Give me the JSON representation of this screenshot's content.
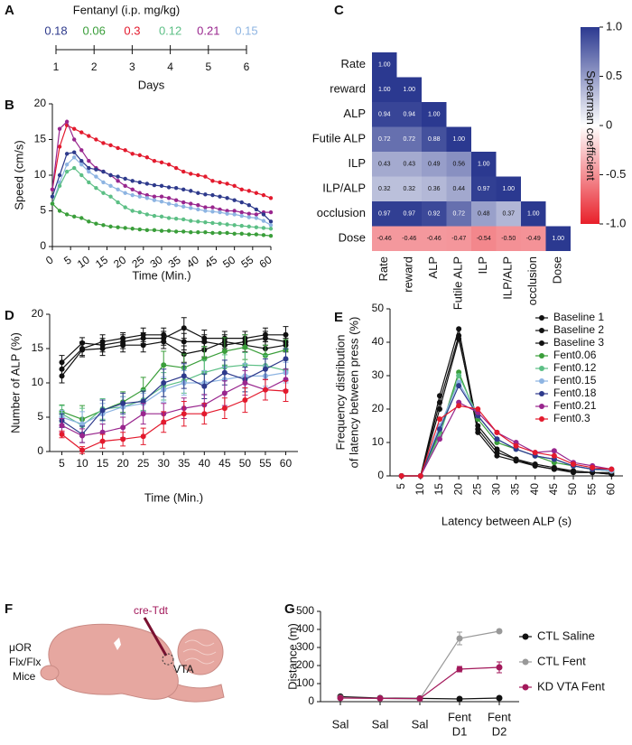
{
  "chart_data": [
    {
      "panel": "A",
      "type": "timeline",
      "title": "Fentanyl (i.p. mg/kg)",
      "xlabel": "Days",
      "x": [
        1,
        2,
        3,
        4,
        5,
        6
      ],
      "values": [
        0.18,
        0.06,
        0.3,
        0.12,
        0.21,
        0.15
      ],
      "colors": [
        "#2e3a8c",
        "#3a9e3a",
        "#e31a2d",
        "#5cbf85",
        "#99268e",
        "#8db4e2"
      ],
      "xlim": [
        1,
        6
      ],
      "xticks": [
        1,
        2,
        3,
        4,
        5,
        6
      ]
    },
    {
      "panel": "B",
      "type": "line",
      "xlabel": "Time (Min.)",
      "ylabel": "Speed (cm/s)",
      "x": [
        0,
        2,
        4,
        6,
        8,
        10,
        12,
        14,
        16,
        18,
        20,
        22,
        24,
        26,
        28,
        30,
        32,
        34,
        36,
        38,
        40,
        42,
        44,
        46,
        48,
        50,
        52,
        54,
        56,
        58,
        60
      ],
      "xlim": [
        0,
        60
      ],
      "xticks": [
        0,
        5,
        10,
        15,
        20,
        25,
        30,
        35,
        40,
        45,
        50,
        55,
        60
      ],
      "ylim": [
        0,
        20
      ],
      "yticks": [
        0,
        5,
        10,
        15,
        20
      ],
      "series": [
        {
          "color": "#e31a2d",
          "values": [
            8,
            14,
            17,
            16.5,
            16,
            15.5,
            15,
            14.5,
            14.2,
            13.8,
            13.5,
            13,
            12.8,
            12.5,
            12,
            11.8,
            11.5,
            11,
            10.5,
            10.2,
            10,
            9.8,
            9.2,
            9,
            8.8,
            8.5,
            8,
            7.8,
            7.5,
            7.2,
            6.8
          ]
        },
        {
          "color": "#99268e",
          "values": [
            8,
            16.5,
            17.5,
            15,
            13.5,
            12,
            11,
            10.5,
            10,
            9.2,
            8.5,
            8,
            7.5,
            7.2,
            7,
            7,
            6.8,
            6.5,
            6.2,
            6,
            5.8,
            5.5,
            5.5,
            5.2,
            5,
            5,
            4.8,
            4.6,
            4.5,
            4.8,
            4.8
          ]
        },
        {
          "color": "#2e3a8c",
          "values": [
            7,
            10,
            13,
            13.2,
            12,
            11,
            10.8,
            10.5,
            10,
            9.8,
            9.5,
            9.2,
            9,
            8.8,
            8.6,
            8.5,
            8.3,
            8.2,
            8,
            7.8,
            7.5,
            7.3,
            7.2,
            7,
            6.8,
            6.5,
            6.2,
            5.8,
            5.2,
            4.5,
            3.5
          ]
        },
        {
          "color": "#8db4e2",
          "values": [
            6,
            9,
            11.5,
            12.5,
            11.5,
            10.5,
            9.8,
            9,
            8.5,
            8,
            7.5,
            7.2,
            7,
            6.8,
            6.5,
            6.3,
            6,
            5.8,
            5.6,
            5.4,
            5.2,
            5,
            4.9,
            4.8,
            4.6,
            4.5,
            4.3,
            4.1,
            4,
            3.6,
            3
          ]
        },
        {
          "color": "#5cbf85",
          "values": [
            6,
            8.5,
            10.5,
            11,
            10,
            9,
            8.2,
            7.5,
            7,
            6.2,
            5.5,
            5,
            4.8,
            4.5,
            4.3,
            4.2,
            4,
            3.9,
            3.8,
            3.6,
            3.5,
            3.4,
            3.3,
            3.2,
            3.1,
            3,
            2.9,
            2.8,
            2.7,
            2.6,
            2.5
          ]
        },
        {
          "color": "#3a9e3a",
          "values": [
            6,
            5,
            4.5,
            4.2,
            4,
            3.5,
            3.2,
            3,
            2.8,
            2.7,
            2.6,
            2.5,
            2.4,
            2.3,
            2.3,
            2.2,
            2.2,
            2.1,
            2.1,
            2,
            2,
            2,
            1.9,
            1.9,
            1.9,
            1.8,
            1.8,
            1.7,
            1.7,
            1.6,
            1.5
          ]
        }
      ]
    },
    {
      "panel": "C",
      "type": "heatmap",
      "colorbar_label": "Spearman coefficient",
      "rows": [
        "Rate",
        "reward",
        "ALP",
        "Futile ALP",
        "ILP",
        "ILP/ALP",
        "occlusion",
        "Dose"
      ],
      "columns": [
        "Rate",
        "reward",
        "ALP",
        "Futile ALP",
        "ILP",
        "ILP/ALP",
        "occlusion",
        "Dose"
      ],
      "values": [
        [
          1,
          null,
          null,
          null,
          null,
          null,
          null,
          null
        ],
        [
          1,
          1,
          null,
          null,
          null,
          null,
          null,
          null
        ],
        [
          0.94,
          0.94,
          1,
          null,
          null,
          null,
          null,
          null
        ],
        [
          0.72,
          0.72,
          0.88,
          1,
          null,
          null,
          null,
          null
        ],
        [
          0.43,
          0.43,
          0.49,
          0.56,
          1,
          null,
          null,
          null
        ],
        [
          0.32,
          0.32,
          0.36,
          0.44,
          0.97,
          1,
          null,
          null
        ],
        [
          0.97,
          0.97,
          0.92,
          0.72,
          0.48,
          0.37,
          1,
          null
        ],
        [
          -0.46,
          -0.46,
          -0.46,
          -0.47,
          -0.54,
          -0.5,
          -0.49,
          1
        ]
      ],
      "value_labels": [
        [
          "1.00",
          null,
          null,
          null,
          null,
          null,
          null,
          null
        ],
        [
          "1.00",
          "1.00",
          null,
          null,
          null,
          null,
          null,
          null
        ],
        [
          "0.94",
          "0.94",
          "1.00",
          null,
          null,
          null,
          null,
          null
        ],
        [
          "0.72",
          "0.72",
          "0.88",
          "1.00",
          null,
          null,
          null,
          null
        ],
        [
          "0.43",
          "0.43",
          "0.49",
          "0.56",
          "1.00",
          null,
          null,
          null
        ],
        [
          "0.32",
          "0.32",
          "0.36",
          "0.44",
          "0.97",
          "1.00",
          null,
          null
        ],
        [
          "0.97",
          "0.97",
          "0.92",
          "0.72",
          "0.48",
          "0.37",
          "1.00",
          null
        ],
        [
          "-0.46",
          "-0.46",
          "-0.46",
          "-0.47",
          "-0.54",
          "-0.50",
          "-0.49",
          "1.00"
        ]
      ],
      "colormap": [
        "#e8202a",
        "#ffffff",
        "#2b3990"
      ],
      "clim": [
        -1,
        1
      ],
      "cticks": [
        {
          "value": -1,
          "label": "-1.0"
        },
        -0.5,
        0,
        0.5,
        {
          "value": 1,
          "label": "1.0"
        }
      ]
    },
    {
      "panel": "D",
      "type": "line",
      "xlabel": "Time (Min.)",
      "ylabel": "Number of ALP (%)",
      "x": [
        5,
        10,
        15,
        20,
        25,
        30,
        35,
        40,
        45,
        50,
        55,
        60
      ],
      "xlim": [
        2,
        63
      ],
      "xticks": [
        5,
        10,
        15,
        20,
        25,
        30,
        35,
        40,
        45,
        50,
        55,
        60
      ],
      "ylim": [
        0,
        20
      ],
      "yticks": [
        0,
        5,
        10,
        15,
        20
      ],
      "series": [
        {
          "color": "#111111",
          "values": [
            13,
            15.8,
            15.5,
            16,
            16.5,
            16.5,
            18,
            16.5,
            16.5,
            16.5,
            17,
            17
          ],
          "errors": [
            1,
            0.8,
            1,
            1,
            0.8,
            1,
            1.5,
            1.2,
            1,
            1,
            1,
            1.2
          ]
        },
        {
          "color": "#111111",
          "values": [
            12,
            15,
            16,
            16.5,
            17,
            17,
            16,
            16,
            15.5,
            16,
            16.5,
            16
          ],
          "errors": [
            1,
            1,
            1,
            0.8,
            1,
            1,
            1.2,
            1,
            1,
            1,
            1,
            1
          ]
        },
        {
          "color": "#111111",
          "values": [
            11,
            14.8,
            15,
            15.5,
            15.5,
            16,
            14.2,
            14.8,
            16,
            15.5,
            15,
            15.5
          ],
          "errors": [
            1,
            1,
            1,
            1,
            1,
            1,
            1.2,
            1,
            1,
            1,
            1,
            1
          ]
        },
        {
          "color": "#3a9e3a",
          "values": [
            5.8,
            4.7,
            6,
            7.2,
            9,
            12.6,
            12.2,
            13.5,
            14.6,
            15.2,
            14,
            14.8
          ],
          "errors": [
            1,
            2,
            1.5,
            1.5,
            1.8,
            2,
            2,
            1.8,
            2,
            1.8,
            1.5,
            1.5
          ]
        },
        {
          "color": "#5cbf85",
          "values": [
            5.5,
            3.8,
            6.2,
            6.5,
            7.5,
            9.5,
            10.3,
            11.5,
            12.3,
            12.6,
            12.5,
            11.8
          ],
          "errors": [
            1.2,
            2.5,
            1.5,
            1.5,
            1.5,
            2,
            1.8,
            1.8,
            1.8,
            1.8,
            1.5,
            1.5
          ]
        },
        {
          "color": "#8db4e2",
          "values": [
            5,
            4,
            5.5,
            6.5,
            7,
            9,
            10,
            10,
            10.5,
            11,
            11,
            11.5
          ],
          "errors": [
            1,
            1.8,
            1.5,
            1.5,
            1.5,
            1.8,
            1.8,
            1.8,
            1.8,
            1.8,
            1.5,
            1.5
          ]
        },
        {
          "color": "#2e3a8c",
          "values": [
            4.5,
            2.5,
            6,
            7,
            7.3,
            10,
            11,
            9.5,
            11.5,
            10.5,
            12,
            13.5
          ],
          "errors": [
            1,
            1.2,
            1.5,
            1.5,
            1.5,
            2,
            1.8,
            1.8,
            1.8,
            1.8,
            1.5,
            1.5
          ]
        },
        {
          "color": "#99268e",
          "values": [
            3.8,
            2.3,
            2.8,
            3.5,
            5.5,
            5.5,
            6.3,
            6.8,
            8.5,
            10,
            9,
            10.5
          ],
          "errors": [
            1,
            1,
            1.2,
            1.5,
            1.5,
            1.5,
            1.5,
            1.5,
            1.8,
            1.8,
            1.5,
            1.5
          ]
        },
        {
          "color": "#e31a2d",
          "values": [
            2.5,
            0.2,
            1.5,
            1.8,
            2.2,
            4.3,
            5.5,
            5.5,
            6.3,
            7.5,
            9,
            8.8
          ],
          "errors": [
            0.5,
            0.5,
            1,
            1,
            1.2,
            1.5,
            1.8,
            1.5,
            1.5,
            1.8,
            1.5,
            1.5
          ]
        }
      ]
    },
    {
      "panel": "E",
      "type": "line",
      "xlabel": "Latency between ALP (s)",
      "ylabel": [
        "Frequency distribution",
        "of latency between press (%)"
      ],
      "x": [
        5,
        10,
        15,
        20,
        25,
        30,
        35,
        40,
        45,
        50,
        55,
        60
      ],
      "xlim": [
        2,
        63
      ],
      "xticks": [
        5,
        10,
        15,
        20,
        25,
        30,
        35,
        40,
        45,
        50,
        55,
        60
      ],
      "ylim": [
        0,
        50
      ],
      "yticks": [
        0,
        10,
        20,
        30,
        40,
        50
      ],
      "legend": "upper right",
      "series": [
        {
          "name": "Baseline 1",
          "color": "#111111",
          "values": [
            0,
            0,
            24,
            44,
            14,
            7,
            5,
            3,
            2,
            1.5,
            1,
            0.5
          ]
        },
        {
          "name": "Baseline 2",
          "color": "#111111",
          "values": [
            0,
            0,
            22,
            42,
            13,
            6,
            4.5,
            3,
            2,
            1,
            1,
            0.5
          ]
        },
        {
          "name": "Baseline 3",
          "color": "#111111",
          "values": [
            0,
            0,
            20,
            41,
            15,
            8,
            5,
            3.5,
            2.5,
            1.5,
            1,
            1
          ]
        },
        {
          "name": "Fent0.06",
          "color": "#3a9e3a",
          "values": [
            0,
            0,
            13,
            31,
            17,
            10,
            8,
            6,
            4,
            3,
            2,
            1.5
          ]
        },
        {
          "name": "Fent0.12",
          "color": "#5cbf85",
          "values": [
            0,
            0,
            12,
            30,
            18,
            11,
            8,
            6,
            5,
            3,
            2,
            1.5
          ]
        },
        {
          "name": "Fent0.15",
          "color": "#8db4e2",
          "values": [
            0,
            0,
            15,
            28,
            18,
            11,
            8,
            6,
            5,
            3,
            2,
            1.5
          ]
        },
        {
          "name": "Fent0.18",
          "color": "#2e3a8c",
          "values": [
            0,
            0,
            14,
            27,
            18,
            11,
            8,
            6,
            5,
            3,
            2,
            2
          ]
        },
        {
          "name": "Fent0.21",
          "color": "#99268e",
          "values": [
            0,
            0,
            11,
            22,
            19,
            13,
            10,
            7,
            7.5,
            4,
            3,
            2
          ]
        },
        {
          "name": "Fent0.3",
          "color": "#e31a2d",
          "values": [
            0,
            0,
            17,
            21,
            20,
            13,
            9,
            7,
            6,
            3.5,
            2.5,
            2
          ]
        }
      ]
    },
    {
      "panel": "G",
      "type": "line",
      "ylabel": "Distance (m)",
      "categories": [
        [
          "Sal"
        ],
        [
          "Sal"
        ],
        [
          "Sal"
        ],
        [
          "Fent",
          "D1"
        ],
        [
          "Fent",
          "D2"
        ]
      ],
      "ylim": [
        0,
        500
      ],
      "yticks": [
        0,
        100,
        200,
        300,
        400,
        500
      ],
      "legend": "right",
      "series": [
        {
          "name": "CTL Saline",
          "color": "#111111",
          "values": [
            28,
            20,
            18,
            15,
            20
          ],
          "errors": [
            3,
            3,
            3,
            3,
            3
          ]
        },
        {
          "name": "CTL Fent",
          "color": "#999999",
          "values": [
            22,
            18,
            15,
            350,
            390
          ],
          "errors": [
            3,
            3,
            3,
            35,
            8
          ]
        },
        {
          "name": "KD VTA Fent",
          "color": "#a3195b",
          "values": [
            20,
            18,
            17,
            180,
            190
          ],
          "errors": [
            3,
            3,
            3,
            15,
            30
          ]
        }
      ]
    }
  ],
  "diagram": {
    "panel": "F",
    "mouse": [
      "μOR",
      "Flx/Flx",
      "Mice"
    ],
    "virus": "cre-Tdt",
    "region": "VTA"
  }
}
